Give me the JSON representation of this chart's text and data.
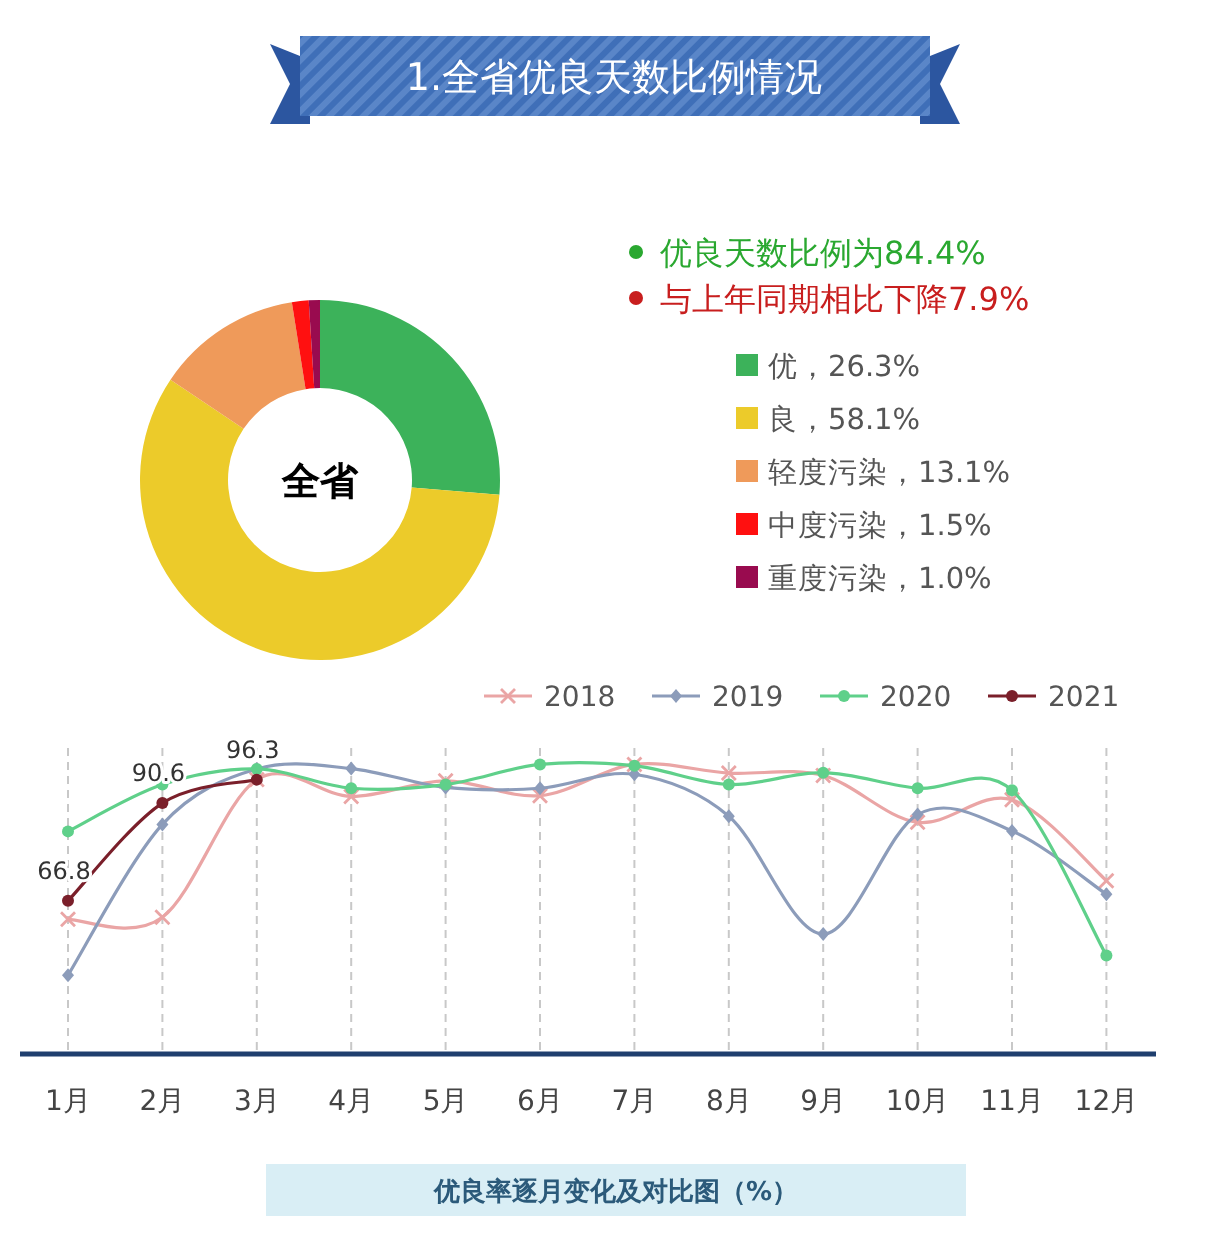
{
  "chart_data": [
    {
      "type": "donut",
      "title": "1.全省优良天数比例情况",
      "categories": [
        "优",
        "良",
        "轻度污染",
        "中度污染",
        "重度污染"
      ],
      "values": [
        26.3,
        58.1,
        13.1,
        1.5,
        1.0
      ],
      "value_labels": [
        "26.3%",
        "58.1%",
        "13.1%",
        "1.5%",
        "1.0%"
      ],
      "colors": [
        "#3cb25a",
        "#eccb2a",
        "#ef9a5a",
        "#ff1010",
        "#990b4f"
      ],
      "legend": "right",
      "annotations": [
        "全省",
        "优良天数比例为84.4%",
        "与上年同期相比下降7.9%"
      ]
    },
    {
      "type": "line",
      "subtitle": "优良率逐月变化及对比图（%）",
      "categories": [
        "1月",
        "2月",
        "3月",
        "4月",
        "5月",
        "6月",
        "7月",
        "8月",
        "9月",
        "10月",
        "11月",
        "12月"
      ],
      "ylim": [
        29.5,
        104
      ],
      "tick_labels": "x",
      "grid": "x",
      "legend": "top right",
      "series": [
        {
          "name": "2018",
          "color": "#eaa5a5",
          "marker": "cross",
          "values": [
            62.3,
            62.8,
            96.3,
            92.2,
            96.0,
            92.4,
            100,
            97.9,
            97.3,
            85.9,
            91.4,
            71.7
          ]
        },
        {
          "name": "2019",
          "color": "#8c9cba",
          "marker": "diamond",
          "values": [
            48.7,
            85.4,
            98.9,
            99.0,
            94.4,
            94.2,
            97.6,
            87.4,
            58.7,
            87.8,
            83.8,
            68.4
          ]
        },
        {
          "name": "2020",
          "color": "#5fd08a",
          "marker": "circle",
          "values": [
            83.7,
            95.1,
            98.9,
            94.2,
            95.1,
            100,
            99.7,
            95.1,
            98.0,
            94.2,
            93.7,
            53.5
          ]
        },
        {
          "name": "2021",
          "color": "#7a1f2a",
          "marker": "circle",
          "values": [
            66.8,
            90.6,
            96.3,
            null,
            null,
            null,
            null,
            null,
            null,
            null,
            null,
            null
          ],
          "value_labels": [
            "66.8",
            "90.6",
            "96.3",
            null,
            null,
            null,
            null,
            null,
            null,
            null,
            null,
            null
          ]
        }
      ]
    }
  ]
}
